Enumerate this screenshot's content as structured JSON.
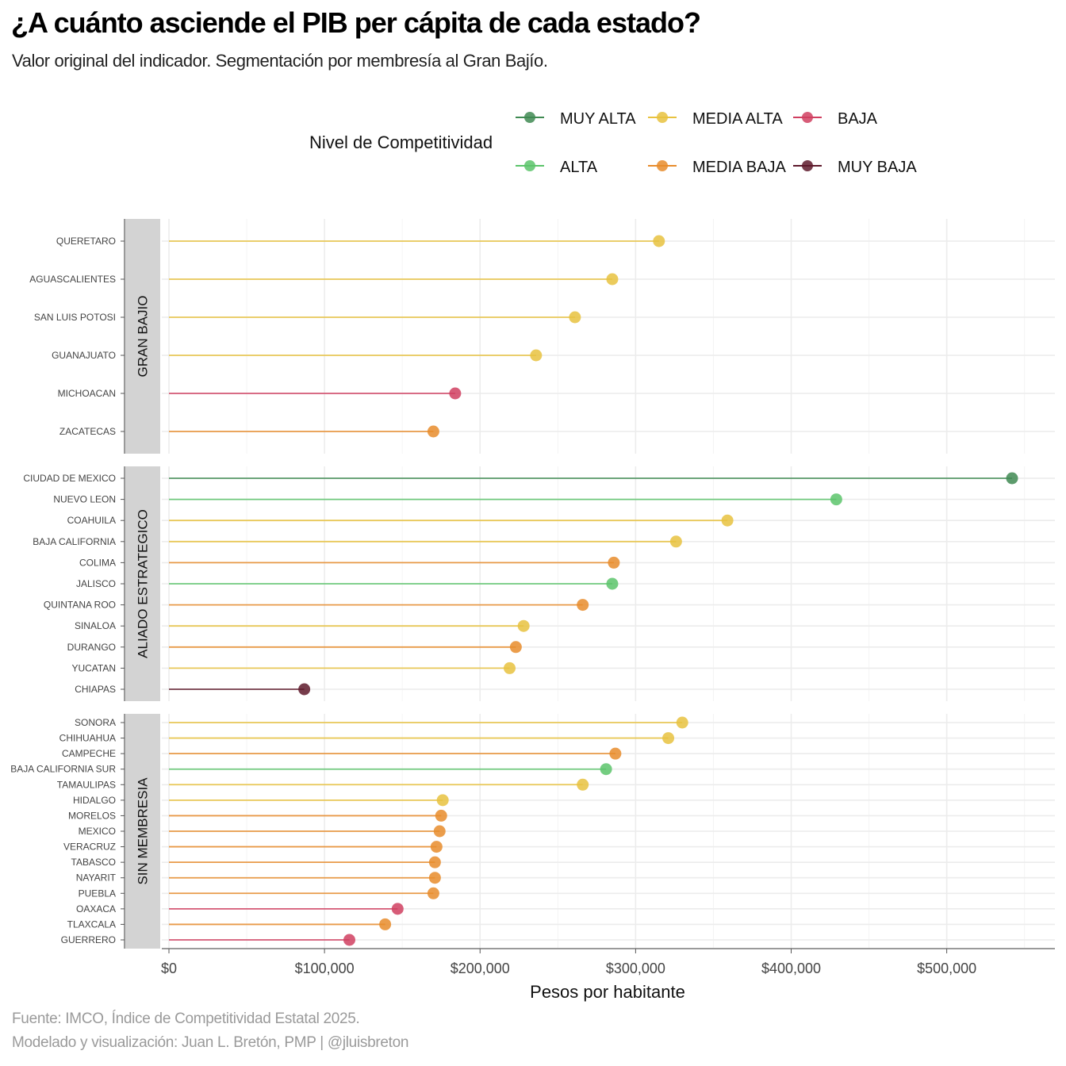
{
  "title": "¿A cuánto asciende el PIB per cápita de cada estado?",
  "subtitle": "Valor original del indicador. Segmentación por membresía al Gran Bajío.",
  "caption": [
    "Fuente: IMCO, Índice de Competitividad Estatal 2025.",
    "Modelado y visualización: Juan L. Bretón, PMP | @jluisbreton"
  ],
  "chart_data": {
    "type": "lollipop",
    "xlabel": "Pesos por habitante",
    "x_ticks": [
      "$0",
      "$100,000",
      "$200,000",
      "$300,000",
      "$400,000",
      "$500,000"
    ],
    "x_tick_values": [
      0,
      100000,
      200000,
      300000,
      400000,
      500000
    ],
    "xlim": [
      -5000,
      568000
    ],
    "grid": true,
    "legend": {
      "title": "Nivel de Competitividad",
      "position": "top",
      "items": [
        {
          "label": "MUY ALTA",
          "color": "#3f8a52"
        },
        {
          "label": "ALTA",
          "color": "#5cc46b"
        },
        {
          "label": "MEDIA ALTA",
          "color": "#e8c23f"
        },
        {
          "label": "MEDIA BAJA",
          "color": "#e88c2c"
        },
        {
          "label": "BAJA",
          "color": "#d03f60"
        },
        {
          "label": "MUY BAJA",
          "color": "#5e1a2c"
        }
      ]
    },
    "panels": [
      {
        "label": "GRAN BAJIO",
        "states": [
          {
            "name": "QUERETARO",
            "value": 315000,
            "level": "MEDIA ALTA"
          },
          {
            "name": "AGUASCALIENTES",
            "value": 285000,
            "level": "MEDIA ALTA"
          },
          {
            "name": "SAN LUIS POTOSI",
            "value": 261000,
            "level": "MEDIA ALTA"
          },
          {
            "name": "GUANAJUATO",
            "value": 236000,
            "level": "MEDIA ALTA"
          },
          {
            "name": "MICHOACAN",
            "value": 184000,
            "level": "BAJA"
          },
          {
            "name": "ZACATECAS",
            "value": 170000,
            "level": "MEDIA BAJA"
          }
        ]
      },
      {
        "label": "ALIADO ESTRATEGICO",
        "states": [
          {
            "name": "CIUDAD DE MEXICO",
            "value": 542000,
            "level": "MUY ALTA"
          },
          {
            "name": "NUEVO LEON",
            "value": 429000,
            "level": "ALTA"
          },
          {
            "name": "COAHUILA",
            "value": 359000,
            "level": "MEDIA ALTA"
          },
          {
            "name": "BAJA CALIFORNIA",
            "value": 326000,
            "level": "MEDIA ALTA"
          },
          {
            "name": "COLIMA",
            "value": 286000,
            "level": "MEDIA BAJA"
          },
          {
            "name": "JALISCO",
            "value": 285000,
            "level": "ALTA"
          },
          {
            "name": "QUINTANA ROO",
            "value": 266000,
            "level": "MEDIA BAJA"
          },
          {
            "name": "SINALOA",
            "value": 228000,
            "level": "MEDIA ALTA"
          },
          {
            "name": "DURANGO",
            "value": 223000,
            "level": "MEDIA BAJA"
          },
          {
            "name": "YUCATAN",
            "value": 219000,
            "level": "MEDIA ALTA"
          },
          {
            "name": "CHIAPAS",
            "value": 87000,
            "level": "MUY BAJA"
          }
        ]
      },
      {
        "label": "SIN MEMBRESIA",
        "states": [
          {
            "name": "SONORA",
            "value": 330000,
            "level": "MEDIA ALTA"
          },
          {
            "name": "CHIHUAHUA",
            "value": 321000,
            "level": "MEDIA ALTA"
          },
          {
            "name": "CAMPECHE",
            "value": 287000,
            "level": "MEDIA BAJA"
          },
          {
            "name": "BAJA CALIFORNIA SUR",
            "value": 281000,
            "level": "ALTA"
          },
          {
            "name": "TAMAULIPAS",
            "value": 266000,
            "level": "MEDIA ALTA"
          },
          {
            "name": "HIDALGO",
            "value": 176000,
            "level": "MEDIA ALTA"
          },
          {
            "name": "MORELOS",
            "value": 175000,
            "level": "MEDIA BAJA"
          },
          {
            "name": "MEXICO",
            "value": 174000,
            "level": "MEDIA BAJA"
          },
          {
            "name": "VERACRUZ",
            "value": 172000,
            "level": "MEDIA BAJA"
          },
          {
            "name": "TABASCO",
            "value": 171000,
            "level": "MEDIA BAJA"
          },
          {
            "name": "NAYARIT",
            "value": 171000,
            "level": "MEDIA BAJA"
          },
          {
            "name": "PUEBLA",
            "value": 170000,
            "level": "MEDIA BAJA"
          },
          {
            "name": "OAXACA",
            "value": 147000,
            "level": "BAJA"
          },
          {
            "name": "TLAXCALA",
            "value": 139000,
            "level": "MEDIA BAJA"
          },
          {
            "name": "GUERRERO",
            "value": 116000,
            "level": "BAJA"
          }
        ]
      }
    ]
  }
}
